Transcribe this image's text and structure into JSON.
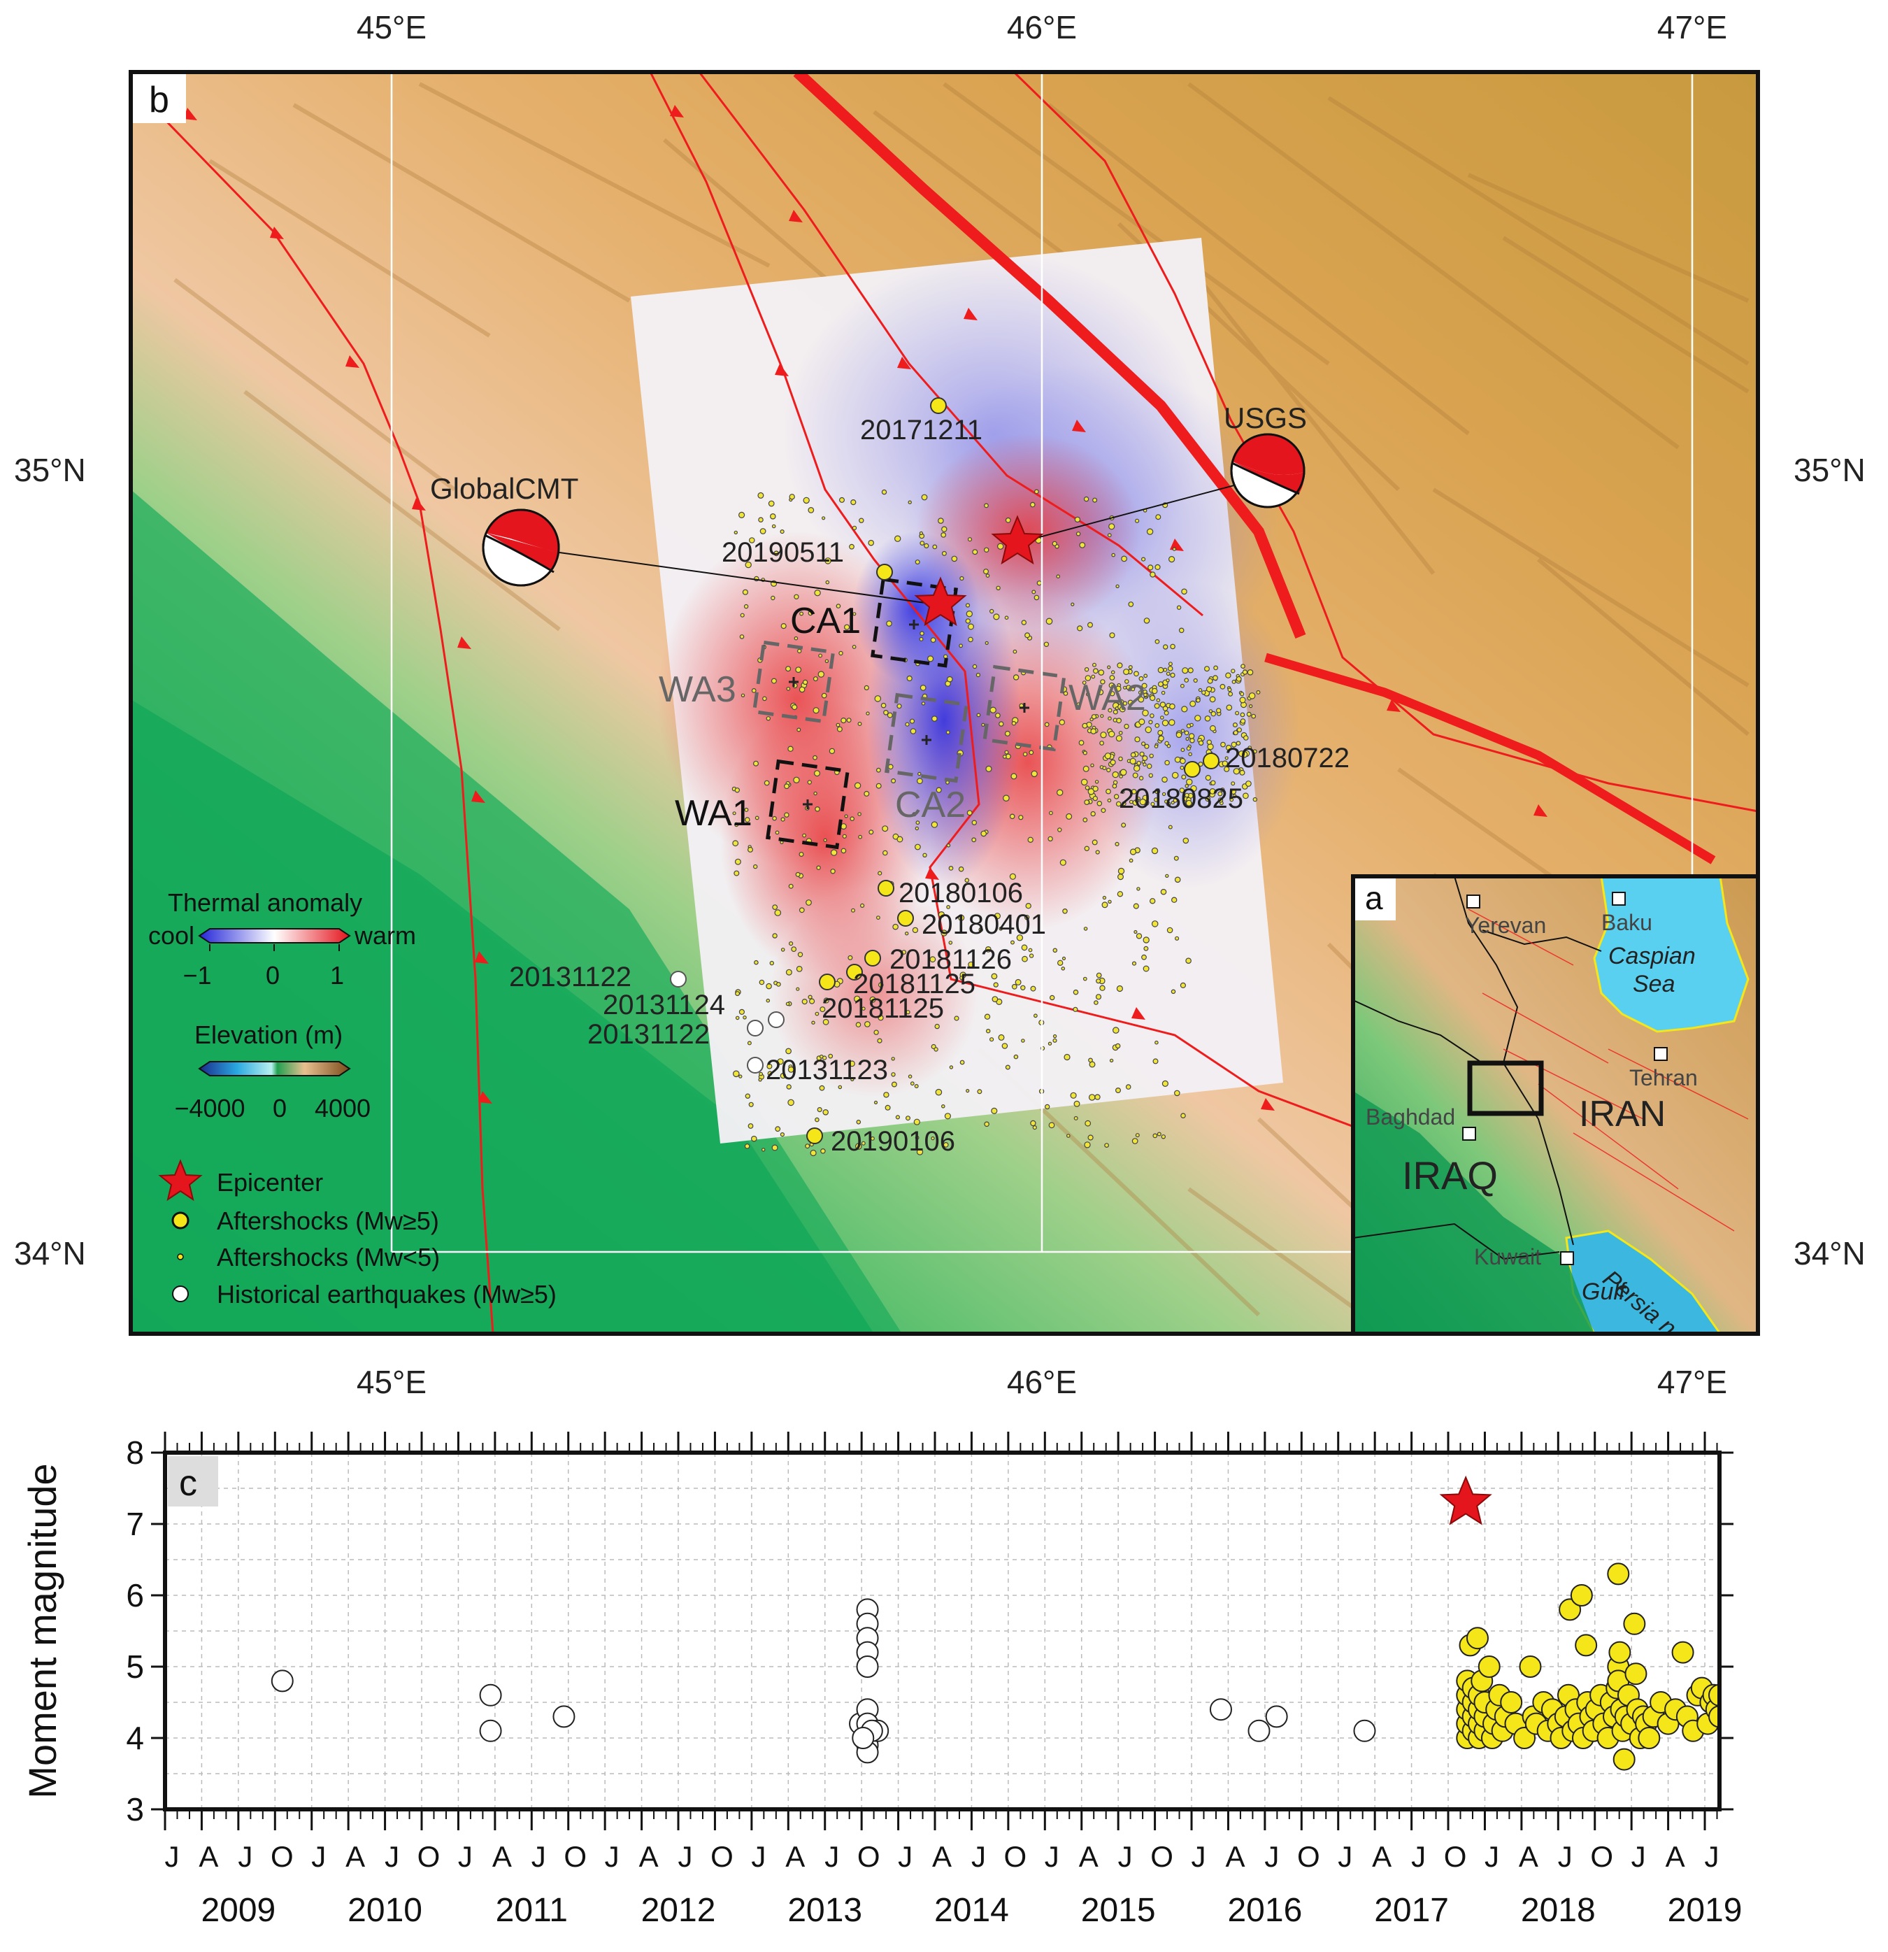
{
  "map": {
    "panel_label": "b",
    "lon_ticks": [
      "45°E",
      "46°E",
      "47°E"
    ],
    "lat_ticks": [
      "35°N",
      "34°N"
    ],
    "mechanisms": {
      "global": "GlobalCMT",
      "usgs": "USGS"
    },
    "patches": [
      "CA1",
      "CA2",
      "WA1",
      "WA2",
      "WA3"
    ],
    "event_labels": [
      "20171211",
      "20190511",
      "20180722",
      "20180825",
      "20180106",
      "20180401",
      "20181126",
      "20181125",
      "20181125",
      "20131122",
      "20131124",
      "20131122",
      "20131123",
      "20190106"
    ],
    "thermal_colorbar": {
      "title": "Thermal anomaly",
      "left": "cool",
      "right": "warm",
      "ticks": [
        "−1",
        "0",
        "1"
      ]
    },
    "elevation_colorbar": {
      "title": "Elevation (m)",
      "ticks": [
        "−4000",
        "0",
        "4000"
      ]
    },
    "legend": [
      "Epicenter",
      "Aftershocks (Mw≥5)",
      "Aftershocks (Mw<5)",
      "Historical earthquakes (Mw≥5)"
    ],
    "colors": {
      "fault": "#ee1c1c",
      "aftershock_large": "#f5e61a",
      "historical": "#ffffff",
      "warm": "#e8383a",
      "cool": "#3a3ae0"
    }
  },
  "inset": {
    "panel_label": "a",
    "cities": [
      "Yerevan",
      "Baku",
      "Tehran",
      "Baghdad",
      "Kuwait"
    ],
    "seas": [
      "Caspian",
      "Sea",
      "Persia n",
      "Gulf"
    ],
    "countries": [
      "IRAN",
      "IRAQ"
    ]
  },
  "chart_data": {
    "type": "scatter",
    "panel_label": "c",
    "ylabel": "Moment magnitude",
    "ylim": [
      3,
      8
    ],
    "yticks": [
      "3",
      "4",
      "5",
      "6",
      "7",
      "8"
    ],
    "xlim": [
      2009.0,
      2019.6
    ],
    "month_labels": [
      "J",
      "A",
      "J",
      "O"
    ],
    "years": [
      "2009",
      "2010",
      "2011",
      "2012",
      "2013",
      "2014",
      "2015",
      "2016",
      "2017",
      "2018",
      "2019"
    ],
    "series": [
      {
        "name": "Historical earthquakes (Mw≥5)",
        "color": "#ffffff",
        "points": [
          [
            2009.8,
            4.8
          ],
          [
            2011.22,
            4.6
          ],
          [
            2011.22,
            4.1
          ],
          [
            2011.72,
            4.3
          ],
          [
            2013.74,
            4.2
          ],
          [
            2013.79,
            5.8
          ],
          [
            2013.79,
            5.6
          ],
          [
            2013.79,
            5.4
          ],
          [
            2013.79,
            5.2
          ],
          [
            2013.79,
            5.0
          ],
          [
            2013.79,
            4.4
          ],
          [
            2013.79,
            4.2
          ],
          [
            2013.79,
            4.0
          ],
          [
            2013.79,
            3.9
          ],
          [
            2013.79,
            3.8
          ],
          [
            2013.86,
            4.1
          ],
          [
            2013.82,
            4.1
          ],
          [
            2013.76,
            4.0
          ],
          [
            2016.2,
            4.4
          ],
          [
            2016.46,
            4.1
          ],
          [
            2016.58,
            4.3
          ],
          [
            2017.18,
            4.1
          ]
        ]
      },
      {
        "name": "Aftershocks (Mw≥5)",
        "color": "#f5e61a",
        "points": [
          [
            2017.88,
            4.0
          ],
          [
            2017.88,
            4.2
          ],
          [
            2017.88,
            4.4
          ],
          [
            2017.88,
            4.6
          ],
          [
            2017.88,
            4.8
          ],
          [
            2017.9,
            5.3
          ],
          [
            2017.92,
            4.1
          ],
          [
            2017.92,
            4.3
          ],
          [
            2017.92,
            4.5
          ],
          [
            2017.92,
            4.7
          ],
          [
            2017.95,
            5.4
          ],
          [
            2017.96,
            4.0
          ],
          [
            2017.96,
            4.2
          ],
          [
            2017.96,
            4.4
          ],
          [
            2017.96,
            4.6
          ],
          [
            2017.98,
            4.8
          ],
          [
            2018.0,
            4.1
          ],
          [
            2018.0,
            4.3
          ],
          [
            2018.0,
            4.5
          ],
          [
            2018.03,
            5.0
          ],
          [
            2018.05,
            4.0
          ],
          [
            2018.06,
            4.2
          ],
          [
            2018.08,
            4.4
          ],
          [
            2018.1,
            4.6
          ],
          [
            2018.12,
            4.1
          ],
          [
            2018.14,
            4.3
          ],
          [
            2018.18,
            4.5
          ],
          [
            2018.21,
            4.2
          ],
          [
            2018.27,
            4.0
          ],
          [
            2018.31,
            5.0
          ],
          [
            2018.33,
            4.3
          ],
          [
            2018.35,
            4.2
          ],
          [
            2018.4,
            4.5
          ],
          [
            2018.43,
            4.1
          ],
          [
            2018.46,
            4.4
          ],
          [
            2018.5,
            4.2
          ],
          [
            2018.52,
            4.0
          ],
          [
            2018.55,
            4.3
          ],
          [
            2018.57,
            4.6
          ],
          [
            2018.58,
            5.8
          ],
          [
            2018.6,
            4.1
          ],
          [
            2018.62,
            4.4
          ],
          [
            2018.64,
            4.2
          ],
          [
            2018.66,
            6.0
          ],
          [
            2018.67,
            4.0
          ],
          [
            2018.69,
            5.3
          ],
          [
            2018.7,
            4.5
          ],
          [
            2018.72,
            4.3
          ],
          [
            2018.74,
            4.1
          ],
          [
            2018.76,
            4.4
          ],
          [
            2018.79,
            4.6
          ],
          [
            2018.81,
            4.2
          ],
          [
            2018.84,
            4.0
          ],
          [
            2018.86,
            4.5
          ],
          [
            2018.88,
            4.3
          ],
          [
            2018.9,
            4.7
          ],
          [
            2018.91,
            6.3
          ],
          [
            2018.91,
            5.0
          ],
          [
            2018.91,
            4.8
          ],
          [
            2018.92,
            5.2
          ],
          [
            2018.93,
            4.4
          ],
          [
            2018.94,
            4.1
          ],
          [
            2018.95,
            3.7
          ],
          [
            2018.96,
            4.3
          ],
          [
            2018.98,
            4.6
          ],
          [
            2019.0,
            4.2
          ],
          [
            2019.02,
            5.6
          ],
          [
            2019.03,
            4.9
          ],
          [
            2019.04,
            4.4
          ],
          [
            2019.06,
            4.0
          ],
          [
            2019.08,
            4.3
          ],
          [
            2019.1,
            4.2
          ],
          [
            2019.12,
            4.0
          ],
          [
            2019.15,
            4.3
          ],
          [
            2019.2,
            4.5
          ],
          [
            2019.25,
            4.2
          ],
          [
            2019.3,
            4.4
          ],
          [
            2019.35,
            5.2
          ],
          [
            2019.38,
            4.3
          ],
          [
            2019.42,
            4.1
          ],
          [
            2019.45,
            4.6
          ],
          [
            2019.48,
            4.7
          ],
          [
            2019.52,
            4.2
          ],
          [
            2019.54,
            4.5
          ],
          [
            2019.56,
            4.6
          ],
          [
            2019.58,
            4.4
          ],
          [
            2019.6,
            4.6
          ],
          [
            2019.6,
            4.3
          ]
        ]
      },
      {
        "name": "Epicenter",
        "color": "#e4151d",
        "points": [
          [
            2017.87,
            7.3
          ]
        ]
      }
    ]
  }
}
